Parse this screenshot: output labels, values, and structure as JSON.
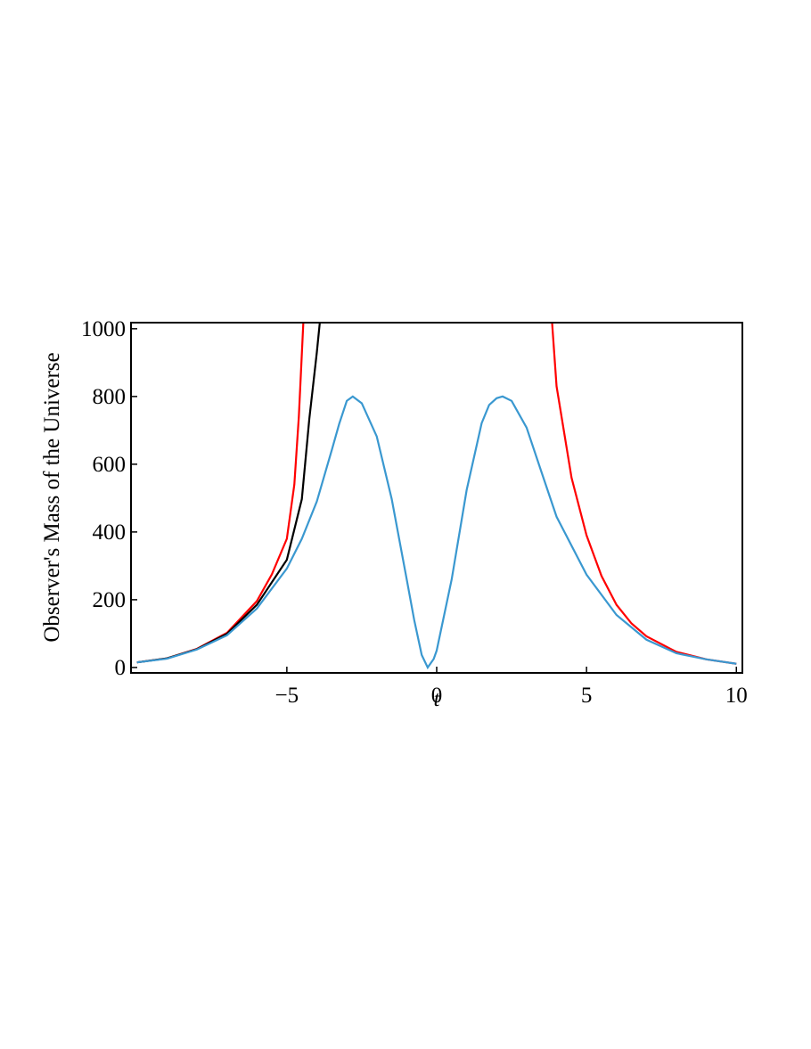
{
  "chart_data": {
    "type": "line",
    "xlabel": "t",
    "ylabel": "Observer's Mass of the Universe",
    "xlim": [
      -10.2,
      10.2
    ],
    "ylim": [
      -16,
      1018
    ],
    "xticks": [
      {
        "value": -5,
        "label": "−5"
      },
      0,
      5,
      10
    ],
    "yticks": [
      0,
      200,
      400,
      600,
      800,
      1000
    ],
    "series": [
      {
        "color": "#ff0000",
        "x": [
          -10,
          -9,
          -8,
          -7,
          -6,
          -5.5,
          -5,
          -4.75,
          -4.6,
          -4.45,
          0,
          3.85,
          4,
          4.5,
          5,
          5.5,
          6,
          6.5,
          7,
          8,
          9,
          10
        ],
        "values": [
          15,
          27,
          55,
          102,
          196,
          275,
          380,
          540,
          740,
          1018,
          null,
          1018,
          830,
          560,
          390,
          270,
          185,
          130,
          92,
          46,
          24,
          11
        ]
      },
      {
        "color": "#000000",
        "x": [
          -10,
          -9,
          -8,
          -7,
          -6,
          -5,
          -4.5,
          -4.25,
          -4,
          -3.9
        ],
        "values": [
          15,
          27,
          54,
          99,
          185,
          318,
          497,
          734,
          930,
          1018
        ]
      },
      {
        "color": "#3a98d0",
        "x": [
          -10,
          -9,
          -8,
          -7,
          -6,
          -5,
          -4.5,
          -4,
          -3.5,
          -3.25,
          -3,
          -2.8,
          -2.5,
          -2,
          -1.5,
          -1,
          -0.75,
          -0.5,
          -0.3,
          -0.1,
          0,
          0.5,
          1,
          1.5,
          1.75,
          2,
          2.2,
          2.5,
          3,
          3.5,
          4,
          5,
          6,
          7,
          8,
          9,
          10
        ],
        "values": [
          15,
          26,
          53,
          95,
          174,
          292,
          380,
          490,
          642,
          720,
          787,
          800,
          780,
          682,
          497,
          260,
          140,
          37,
          0,
          25,
          50,
          260,
          524,
          721,
          775,
          795,
          800,
          787,
          708,
          576,
          445,
          274,
          155,
          82,
          42,
          24,
          11
        ]
      }
    ]
  }
}
